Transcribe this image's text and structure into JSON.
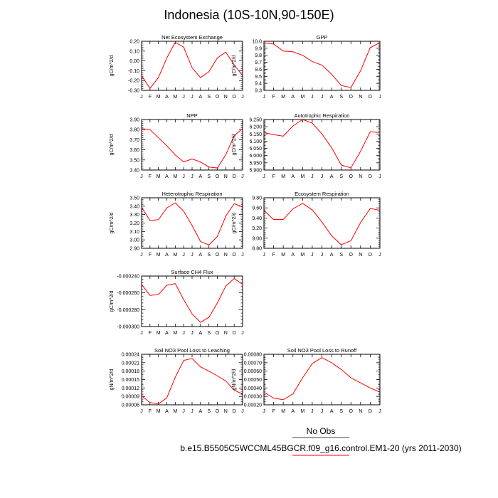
{
  "title": "Indonesia (10S-10N,90-150E)",
  "legend": {
    "entries": [
      {
        "label": "No Obs",
        "color": "#000000"
      },
      {
        "label": "b.e15.B5505C5WCCML45BGCR.f09_g16.control.EM1-20 (yrs 2011-2030)",
        "color": "#ff0000"
      }
    ]
  },
  "colors": {
    "series": "#ff0000",
    "axis": "#000000"
  },
  "chart_data": [
    {
      "type": "line",
      "title": "Net Ecosystem Exchange",
      "ylabel": "gC/m^2/d",
      "categories": [
        "J",
        "F",
        "M",
        "A",
        "M",
        "J",
        "J",
        "A",
        "S",
        "O",
        "N",
        "D",
        "J"
      ],
      "ylim": [
        -0.3,
        0.2
      ],
      "yticks": [
        -0.3,
        -0.2,
        -0.1,
        0.0,
        0.1,
        0.2
      ],
      "ytick_labels": [
        "-0.30",
        "-0.20",
        "-0.10",
        "0.00",
        "0.10",
        "0.20"
      ],
      "series": [
        {
          "values": [
            -0.15,
            -0.28,
            -0.17,
            0.03,
            0.19,
            0.14,
            -0.07,
            -0.17,
            -0.11,
            0.03,
            0.09,
            -0.04,
            -0.15
          ]
        }
      ]
    },
    {
      "type": "line",
      "title": "GPP",
      "ylabel": "gC/m^2/d",
      "categories": [
        "J",
        "F",
        "M",
        "A",
        "M",
        "J",
        "J",
        "A",
        "S",
        "O",
        "N",
        "D",
        "J"
      ],
      "ylim": [
        9.3,
        10.0
      ],
      "yticks": [
        9.3,
        9.4,
        9.5,
        9.6,
        9.7,
        9.8,
        9.9,
        10.0
      ],
      "ytick_labels": [
        "9.3",
        "9.4",
        "9.5",
        "9.6",
        "9.7",
        "9.8",
        "9.9",
        "10.0"
      ],
      "series": [
        {
          "values": [
            9.98,
            9.96,
            9.86,
            9.85,
            9.8,
            9.71,
            9.66,
            9.53,
            9.37,
            9.34,
            9.58,
            9.91,
            9.98
          ]
        }
      ]
    },
    {
      "type": "line",
      "title": "NPP",
      "ylabel": "gC/m^2/d",
      "categories": [
        "J",
        "F",
        "M",
        "A",
        "M",
        "J",
        "J",
        "A",
        "S",
        "O",
        "N",
        "D",
        "J"
      ],
      "ylim": [
        3.4,
        3.9
      ],
      "yticks": [
        3.4,
        3.5,
        3.6,
        3.7,
        3.8,
        3.9
      ],
      "ytick_labels": [
        "3.40",
        "3.50",
        "3.60",
        "3.70",
        "3.80",
        "3.90"
      ],
      "series": [
        {
          "values": [
            3.81,
            3.8,
            3.72,
            3.64,
            3.55,
            3.48,
            3.51,
            3.48,
            3.43,
            3.42,
            3.55,
            3.74,
            3.81
          ]
        }
      ]
    },
    {
      "type": "line",
      "title": "Autotrophic Respiration",
      "ylabel": "gC/m^2/d",
      "categories": [
        "J",
        "F",
        "M",
        "A",
        "M",
        "J",
        "J",
        "A",
        "S",
        "O",
        "N",
        "D",
        "J"
      ],
      "ylim": [
        5.9,
        6.25
      ],
      "yticks": [
        5.9,
        5.95,
        6.0,
        6.05,
        6.1,
        6.15,
        6.2,
        6.25
      ],
      "ytick_labels": [
        "5.900",
        "5.950",
        "6.000",
        "6.050",
        "6.100",
        "6.150",
        "6.200",
        "6.250"
      ],
      "series": [
        {
          "values": [
            6.16,
            6.145,
            6.135,
            6.205,
            6.25,
            6.225,
            6.15,
            6.055,
            5.935,
            5.915,
            6.03,
            6.165,
            6.16
          ]
        }
      ]
    },
    {
      "type": "line",
      "title": "Heterotrophic Respiration",
      "ylabel": "gC/m^2/d",
      "categories": [
        "J",
        "F",
        "M",
        "A",
        "M",
        "J",
        "J",
        "A",
        "S",
        "O",
        "N",
        "D",
        "J"
      ],
      "ylim": [
        2.9,
        3.5
      ],
      "yticks": [
        2.9,
        3.0,
        3.1,
        3.2,
        3.3,
        3.4,
        3.5
      ],
      "ytick_labels": [
        "2.90",
        "3.00",
        "3.10",
        "3.20",
        "3.30",
        "3.40",
        "3.50"
      ],
      "series": [
        {
          "values": [
            3.39,
            3.23,
            3.24,
            3.38,
            3.44,
            3.34,
            3.17,
            2.98,
            2.94,
            3.04,
            3.28,
            3.43,
            3.39
          ]
        }
      ]
    },
    {
      "type": "line",
      "title": "Ecosystem Respiration",
      "ylabel": "gC/m^2/d",
      "categories": [
        "J",
        "F",
        "M",
        "A",
        "M",
        "J",
        "J",
        "A",
        "S",
        "O",
        "N",
        "D",
        "J"
      ],
      "ylim": [
        8.8,
        9.8
      ],
      "yticks": [
        8.8,
        9.0,
        9.2,
        9.4,
        9.6,
        9.8
      ],
      "ytick_labels": [
        "8.80",
        "9.00",
        "9.20",
        "9.40",
        "9.60",
        "9.80"
      ],
      "series": [
        {
          "values": [
            9.55,
            9.37,
            9.37,
            9.58,
            9.69,
            9.56,
            9.32,
            9.05,
            8.87,
            8.95,
            9.31,
            9.59,
            9.55
          ]
        }
      ]
    },
    {
      "type": "line",
      "title": "Surface CH4 Flux",
      "ylabel": "gC/m^2/d",
      "categories": [
        "J",
        "F",
        "M",
        "A",
        "M",
        "J",
        "J",
        "A",
        "S",
        "O",
        "N",
        "D",
        "J"
      ],
      "ylim": [
        -0.0003,
        -0.00024
      ],
      "yticks": [
        -0.0003,
        -0.00028,
        -0.00026,
        -0.00024
      ],
      "ytick_labels": [
        "-0.000300",
        "-0.000280",
        "-0.000260",
        "-0.000240"
      ],
      "series": [
        {
          "values": [
            -0.00025,
            -0.000263,
            -0.000262,
            -0.000251,
            -0.000249,
            -0.000268,
            -0.000285,
            -0.000295,
            -0.000289,
            -0.000272,
            -0.000252,
            -0.000243,
            -0.00025
          ]
        }
      ]
    },
    {
      "type": "line",
      "title": "Soil NO3 Pool Loss to Leaching",
      "ylabel": "gN/m^2/d",
      "categories": [
        "J",
        "F",
        "M",
        "A",
        "M",
        "J",
        "J",
        "A",
        "S",
        "O",
        "N",
        "D",
        "J"
      ],
      "ylim": [
        6e-05,
        0.00024
      ],
      "yticks": [
        6e-05,
        9e-05,
        0.00012,
        0.00015,
        0.00018,
        0.00021,
        0.00024
      ],
      "ytick_labels": [
        "0.00006",
        "0.00009",
        "0.00012",
        "0.00015",
        "0.00018",
        "0.00021",
        "0.00024"
      ],
      "series": [
        {
          "values": [
            9.2e-05,
            6.8e-05,
            6.3e-05,
            8.5e-05,
            0.000158,
            0.000218,
            0.000225,
            0.000195,
            0.00018,
            0.000163,
            0.000145,
            0.000112,
            9.8e-05
          ]
        }
      ]
    },
    {
      "type": "line",
      "title": "Soil NO3 Pool Loss to Runoff",
      "ylabel": "gN/m^2/d",
      "categories": [
        "J",
        "F",
        "M",
        "A",
        "M",
        "J",
        "J",
        "A",
        "S",
        "O",
        "N",
        "D",
        "J"
      ],
      "ylim": [
        0.0002,
        0.0008
      ],
      "yticks": [
        0.0002,
        0.0003,
        0.0004,
        0.0005,
        0.0006,
        0.0007,
        0.0008
      ],
      "ytick_labels": [
        "0.00020",
        "0.00030",
        "0.00040",
        "0.00050",
        "0.00060",
        "0.00070",
        "0.00080"
      ],
      "series": [
        {
          "values": [
            0.00035,
            0.00028,
            0.00026,
            0.00033,
            0.00052,
            0.00069,
            0.00076,
            0.0007,
            0.00062,
            0.00052,
            0.00046,
            0.0004,
            0.00035
          ]
        }
      ]
    }
  ]
}
